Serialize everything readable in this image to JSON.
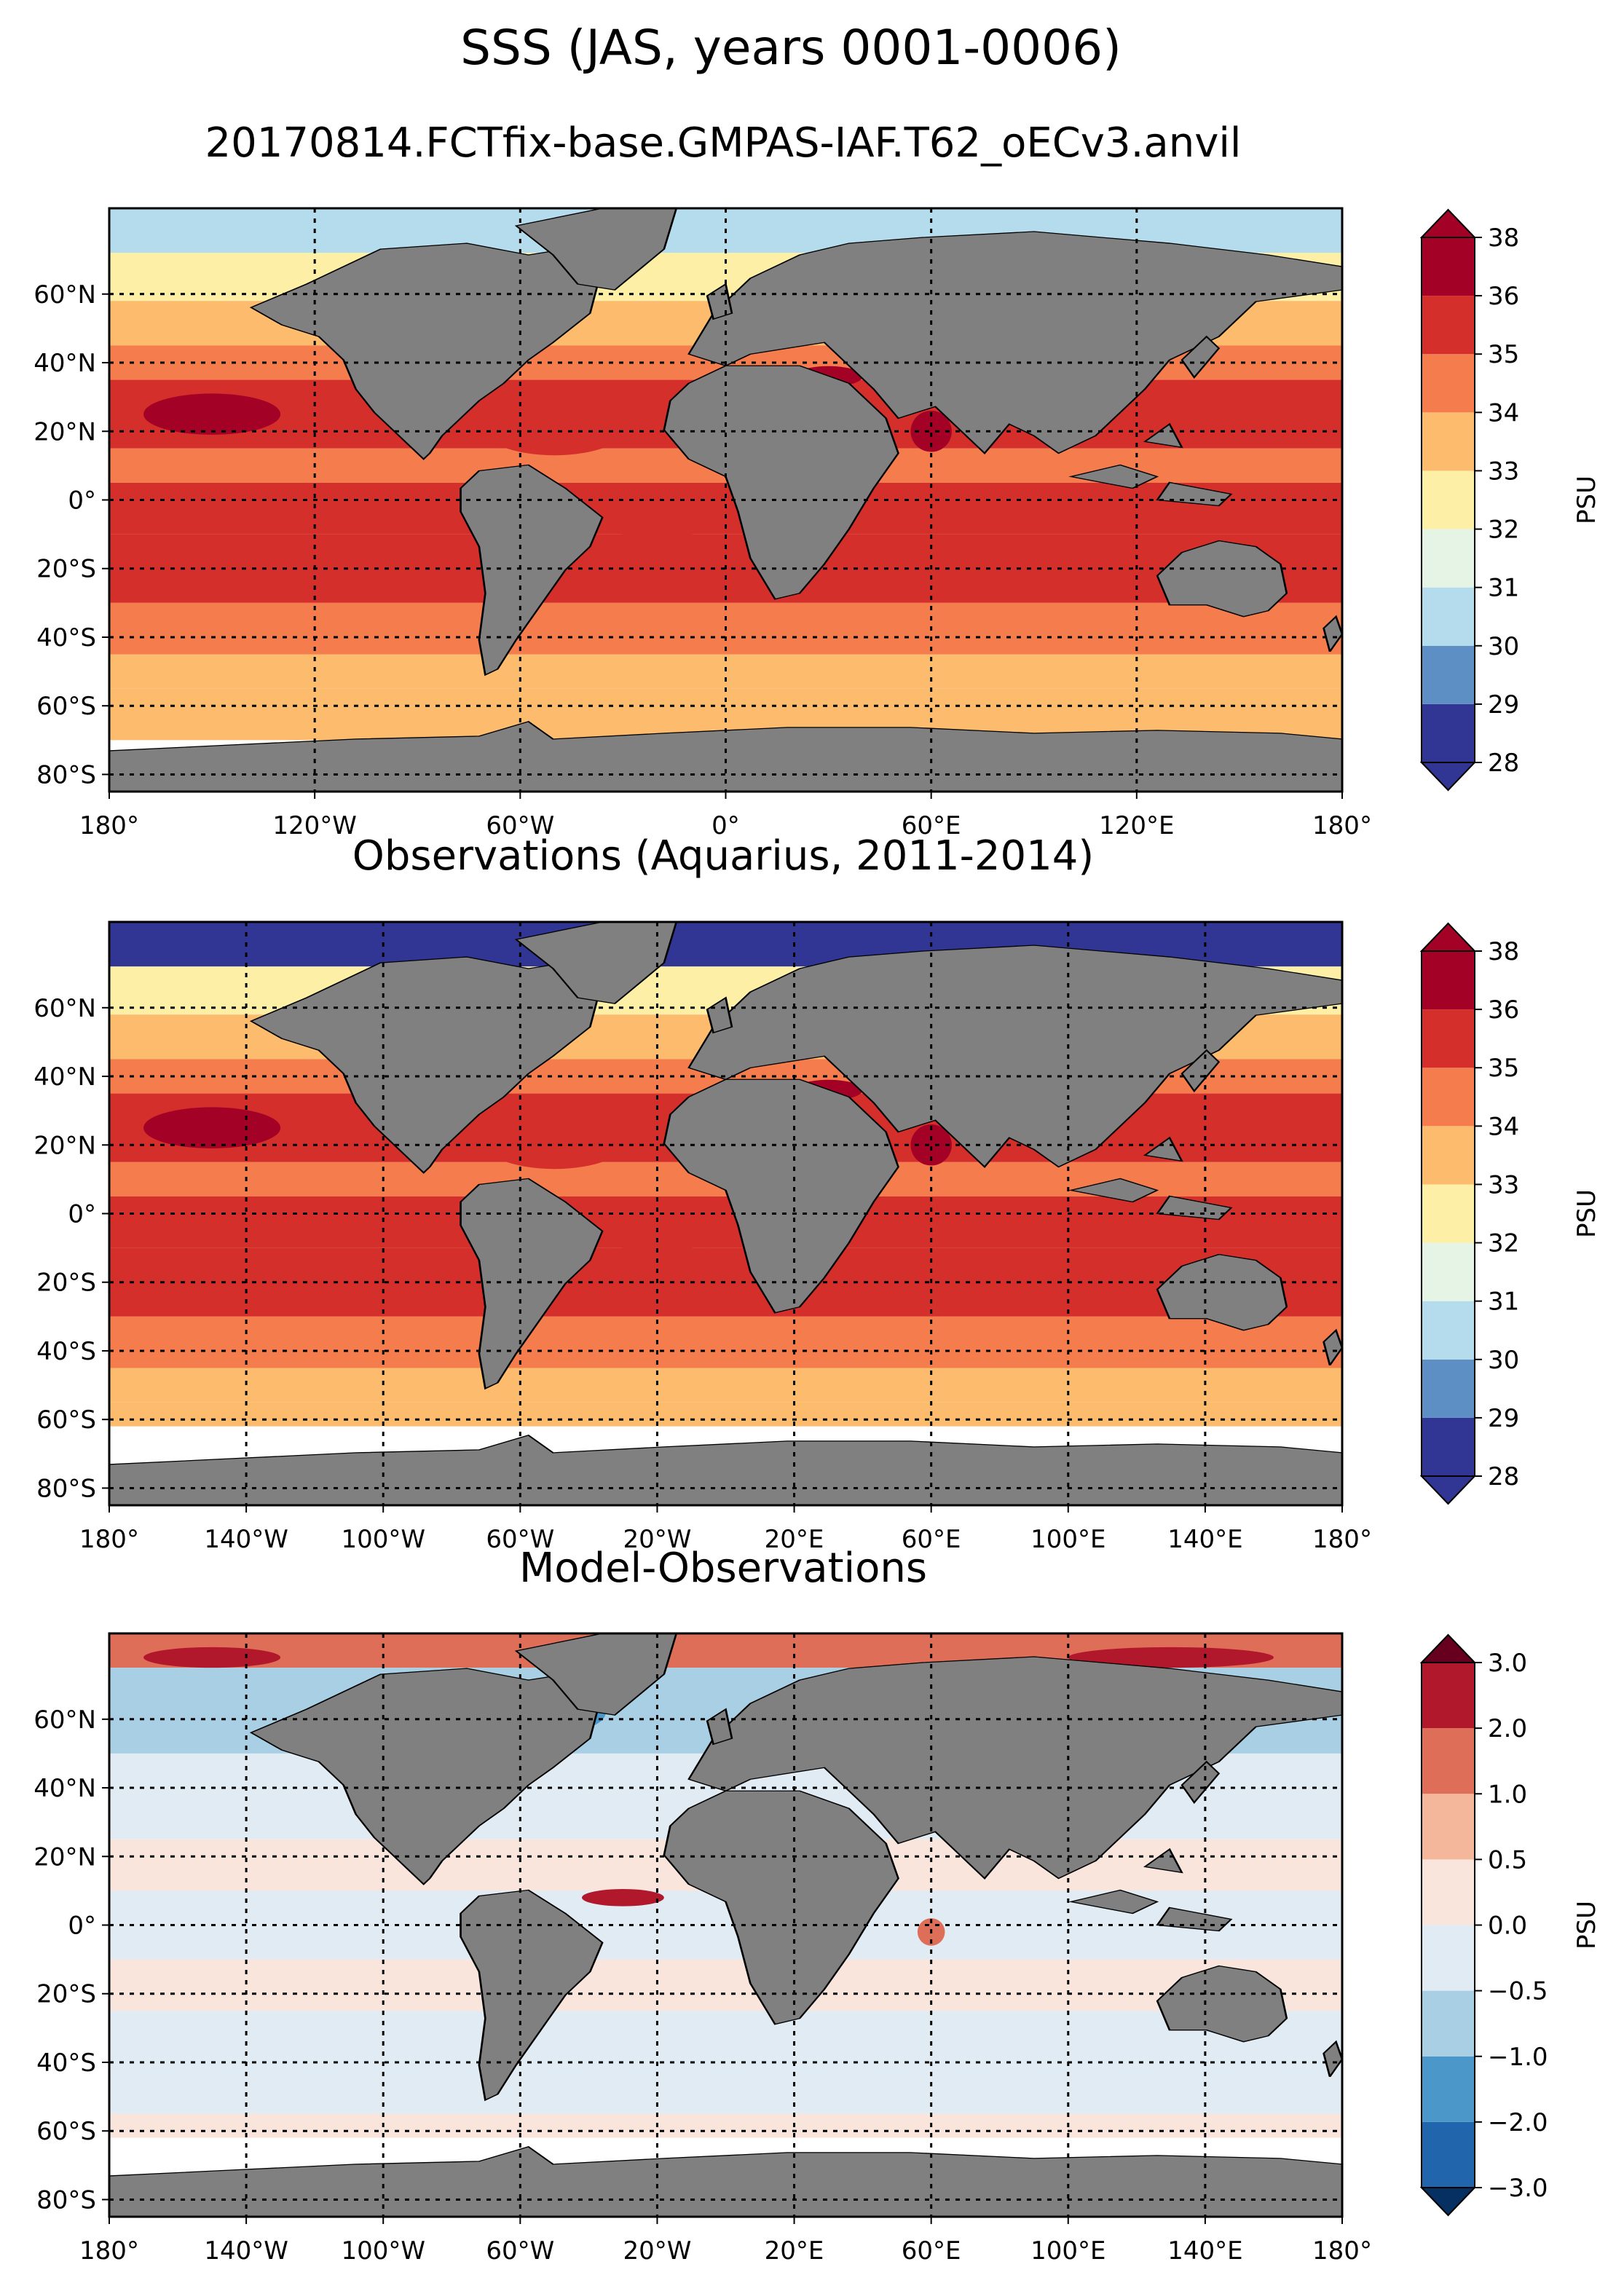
{
  "figure": {
    "title": "SSS (JAS, years 0001-0006)",
    "subtitle": "20170814.FCTfix-base.GMPAS-IAF.T62_oECv3.anvil"
  },
  "panels": [
    {
      "id": "model",
      "title": "",
      "lon_ticks": [
        "180°",
        "120°W",
        "60°W",
        "0°",
        "60°E",
        "120°E",
        "180°"
      ],
      "lon_values": [
        -180,
        -120,
        -60,
        0,
        60,
        120,
        180
      ],
      "lat_ticks": [
        "60°N",
        "40°N",
        "20°N",
        "0°",
        "20°S",
        "40°S",
        "60°S",
        "80°S"
      ],
      "lat_values": [
        60,
        40,
        20,
        0,
        -20,
        -40,
        -60,
        -80
      ],
      "cbar_levels": [
        "28",
        "29",
        "30",
        "31",
        "32",
        "33",
        "34",
        "35",
        "36",
        "38"
      ],
      "cbar_label": "PSU"
    },
    {
      "id": "obs",
      "title": "Observations (Aquarius, 2011-2014)",
      "lon_ticks": [
        "180°",
        "140°W",
        "100°W",
        "60°W",
        "20°W",
        "20°E",
        "60°E",
        "100°E",
        "140°E",
        "180°"
      ],
      "lon_values": [
        -180,
        -140,
        -100,
        -60,
        -20,
        20,
        60,
        100,
        140,
        180
      ],
      "lat_ticks": [
        "60°N",
        "40°N",
        "20°N",
        "0°",
        "20°S",
        "40°S",
        "60°S",
        "80°S"
      ],
      "lat_values": [
        60,
        40,
        20,
        0,
        -20,
        -40,
        -60,
        -80
      ],
      "cbar_levels": [
        "28",
        "29",
        "30",
        "31",
        "32",
        "33",
        "34",
        "35",
        "36",
        "38"
      ],
      "cbar_label": "PSU"
    },
    {
      "id": "bias",
      "title": "Model-Observations",
      "lon_ticks": [
        "180°",
        "140°W",
        "100°W",
        "60°W",
        "20°W",
        "20°E",
        "60°E",
        "100°E",
        "140°E",
        "180°"
      ],
      "lon_values": [
        -180,
        -140,
        -100,
        -60,
        -20,
        20,
        60,
        100,
        140,
        180
      ],
      "lat_ticks": [
        "60°N",
        "40°N",
        "20°N",
        "0°",
        "20°S",
        "40°S",
        "60°S",
        "80°S"
      ],
      "lat_values": [
        60,
        40,
        20,
        0,
        -20,
        -40,
        -60,
        -80
      ],
      "cbar_levels": [
        "−3.0",
        "−2.0",
        "−1.0",
        "−0.5",
        "0.0",
        "0.5",
        "1.0",
        "2.0",
        "3.0"
      ],
      "cbar_label": "PSU"
    }
  ],
  "chart_data": [
    {
      "type": "heatmap",
      "title": "",
      "xlim": [
        -180,
        180
      ],
      "ylim": [
        -85,
        85
      ],
      "colorbar": {
        "label": "PSU",
        "levels": [
          28,
          29,
          30,
          31,
          32,
          33,
          34,
          35,
          36,
          38
        ],
        "colors": [
          "#313695",
          "#5e8fc4",
          "#b5dced",
          "#e6f4e6",
          "#fdefa5",
          "#fdbb6d",
          "#f47c4d",
          "#d42f2a",
          "#a30226"
        ],
        "extend": "both"
      },
      "grid": true,
      "land_color": "#808080"
    },
    {
      "type": "heatmap",
      "title": "Observations (Aquarius, 2011-2014)",
      "xlim": [
        -180,
        180
      ],
      "ylim": [
        -85,
        85
      ],
      "colorbar": {
        "label": "PSU",
        "levels": [
          28,
          29,
          30,
          31,
          32,
          33,
          34,
          35,
          36,
          38
        ],
        "colors": [
          "#313695",
          "#5e8fc4",
          "#b5dced",
          "#e6f4e6",
          "#fdefa5",
          "#fdbb6d",
          "#f47c4d",
          "#d42f2a",
          "#a30226"
        ],
        "extend": "both"
      },
      "grid": true,
      "land_color": "#808080"
    },
    {
      "type": "heatmap",
      "title": "Model-Observations",
      "xlim": [
        -180,
        180
      ],
      "ylim": [
        -85,
        85
      ],
      "colorbar": {
        "label": "PSU",
        "levels": [
          -3.0,
          -2.0,
          -1.0,
          -0.5,
          0.0,
          0.5,
          1.0,
          2.0,
          3.0
        ],
        "colors": [
          "#2166ac",
          "#4c97c9",
          "#a8cfe4",
          "#e0ebf4",
          "#f9e5dc",
          "#f4b79b",
          "#de6e58",
          "#b2182b"
        ],
        "extend": "both"
      },
      "grid": true,
      "land_color": "#808080"
    }
  ]
}
